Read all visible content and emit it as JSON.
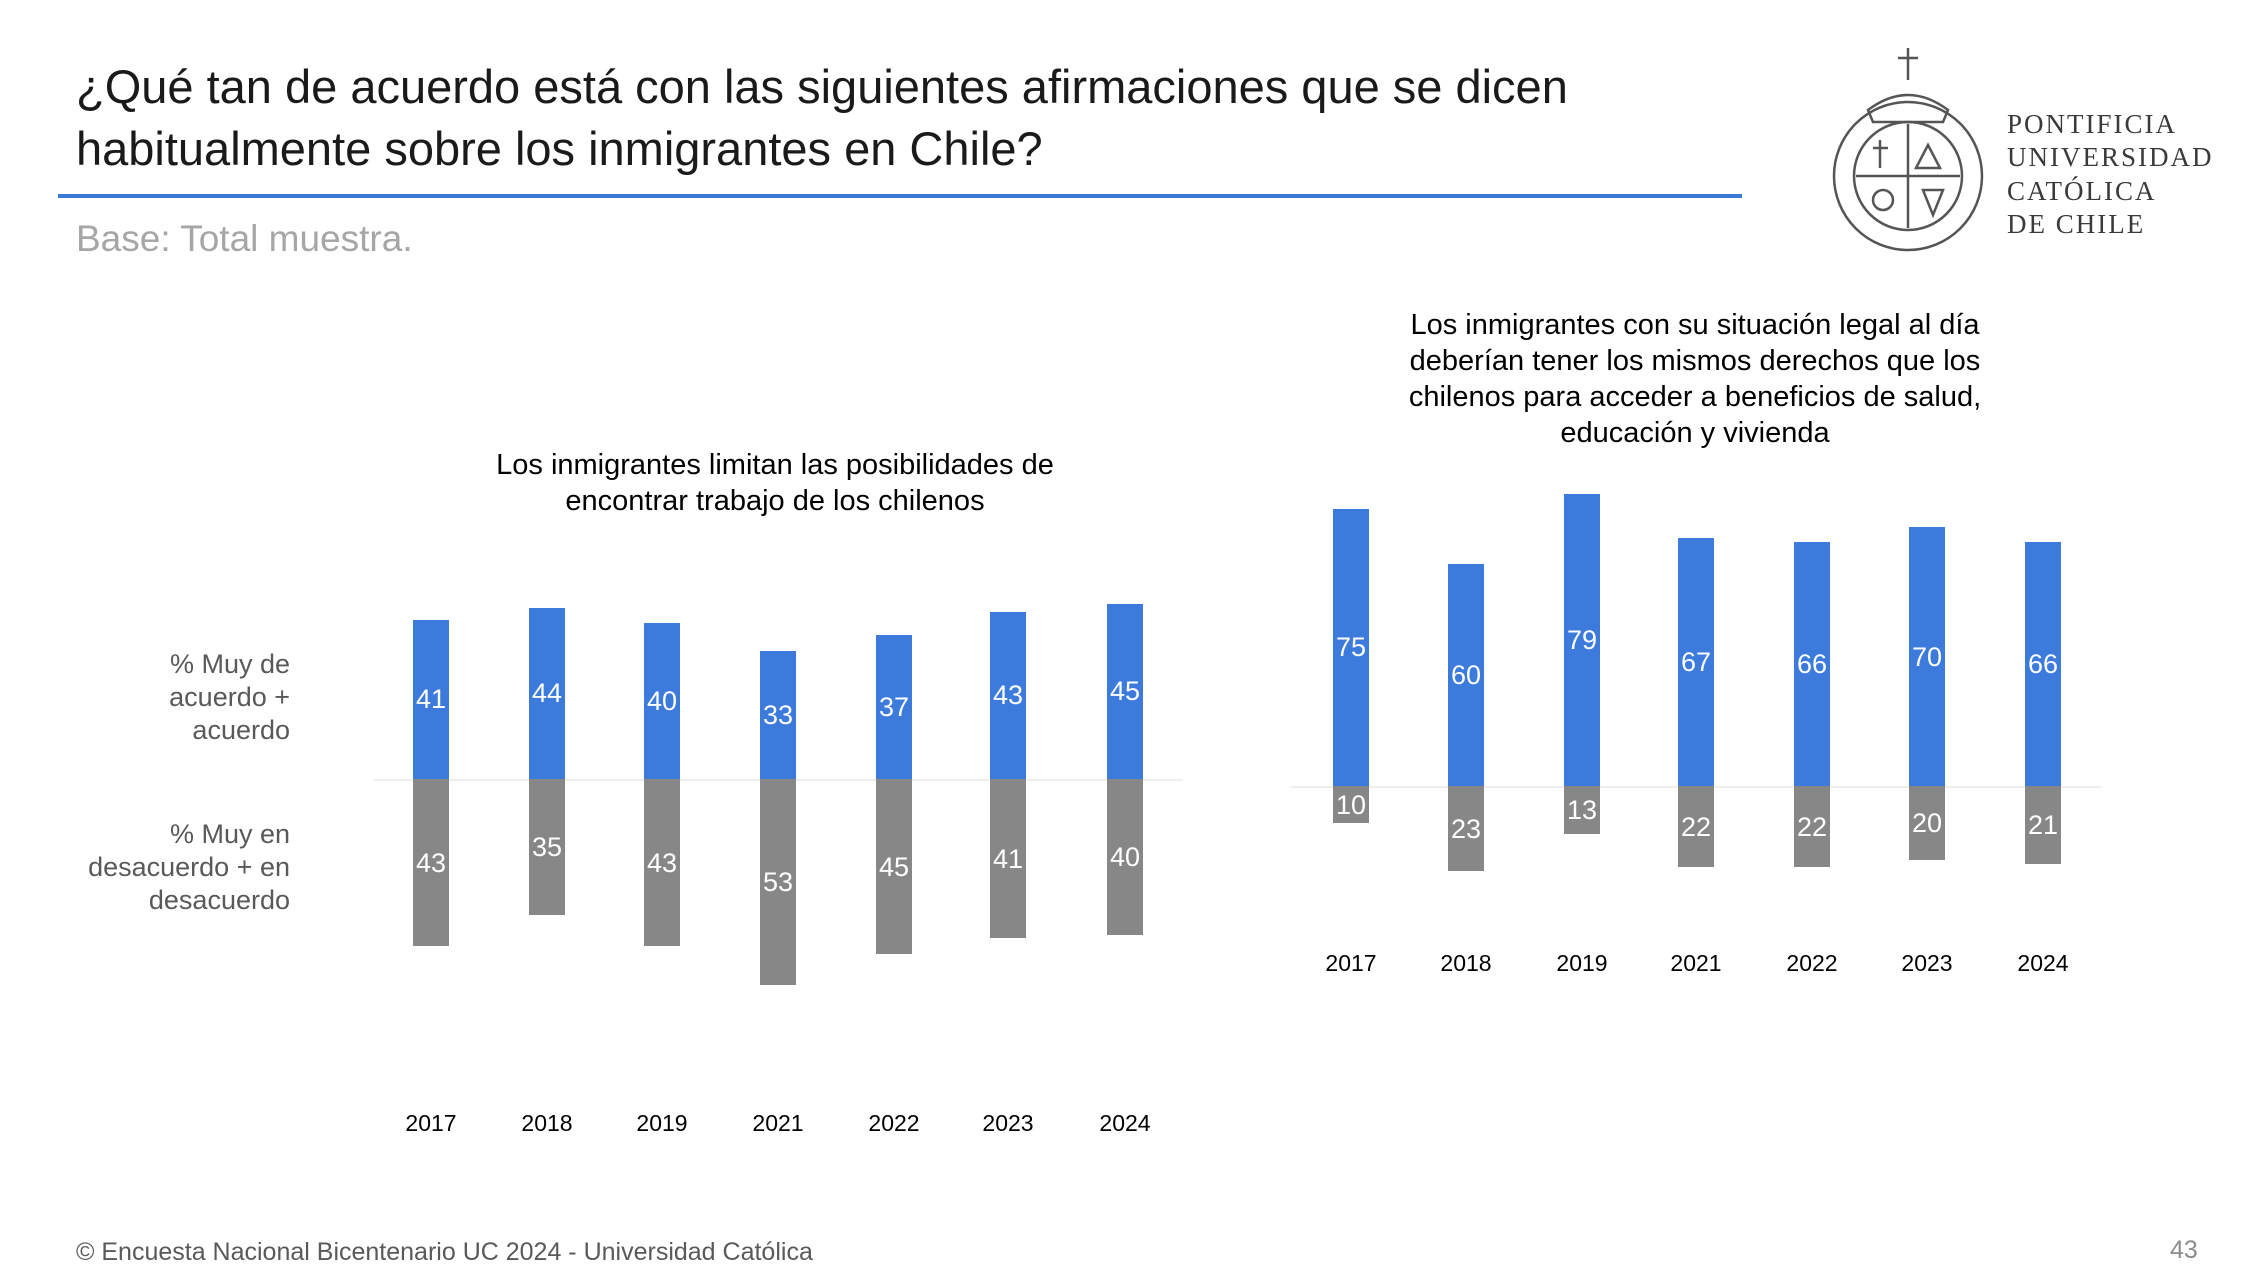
{
  "header": {
    "title_line1": "¿Qué tan de acuerdo está con las siguientes afirmaciones que se dicen",
    "title_line2": "habitualmente sobre los inmigrantes en Chile?",
    "base": "Base: Total muestra."
  },
  "logo": {
    "lines": [
      "PONTIFICIA",
      "UNIVERSIDAD",
      "CATÓLICA",
      "DE CHILE"
    ],
    "seal_text": "PONTIFICIA UNIVERSIDAD CATÓLICA DE CHILE"
  },
  "row_labels": {
    "agree": [
      "% Muy de",
      "acuerdo +",
      "acuerdo"
    ],
    "disagree": [
      "% Muy en",
      "desacuerdo + en",
      "desacuerdo"
    ]
  },
  "colors": {
    "agree": "#3c7bdc",
    "disagree": "#878787"
  },
  "chart_data": [
    {
      "type": "bar",
      "title_lines": [
        "Los inmigrantes limitan las posibilidades de",
        "encontrar trabajo de los chilenos"
      ],
      "categories": [
        "2017",
        "2018",
        "2019",
        "2021",
        "2022",
        "2023",
        "2024"
      ],
      "series": [
        {
          "name": "% Muy de acuerdo + acuerdo",
          "values": [
            41,
            44,
            40,
            33,
            37,
            43,
            45
          ]
        },
        {
          "name": "% Muy en desacuerdo + en desacuerdo",
          "values": [
            43,
            35,
            43,
            53,
            45,
            41,
            40
          ]
        }
      ],
      "layout": "diverging"
    },
    {
      "type": "bar",
      "title_lines": [
        "Los inmigrantes con su situación legal al día",
        "deberían tener los mismos derechos que los",
        "chilenos para acceder a beneficios de salud,",
        "educación y vivienda"
      ],
      "categories": [
        "2017",
        "2018",
        "2019",
        "2021",
        "2022",
        "2023",
        "2024"
      ],
      "series": [
        {
          "name": "% Muy de acuerdo + acuerdo",
          "values": [
            75,
            60,
            79,
            67,
            66,
            70,
            66
          ]
        },
        {
          "name": "% Muy en desacuerdo + en desacuerdo",
          "values": [
            10,
            23,
            13,
            22,
            22,
            20,
            21
          ]
        }
      ],
      "layout": "diverging"
    }
  ],
  "footer": {
    "source": "© Encuesta Nacional Bicentenario UC 2024 - Universidad Católica",
    "page": "43"
  }
}
